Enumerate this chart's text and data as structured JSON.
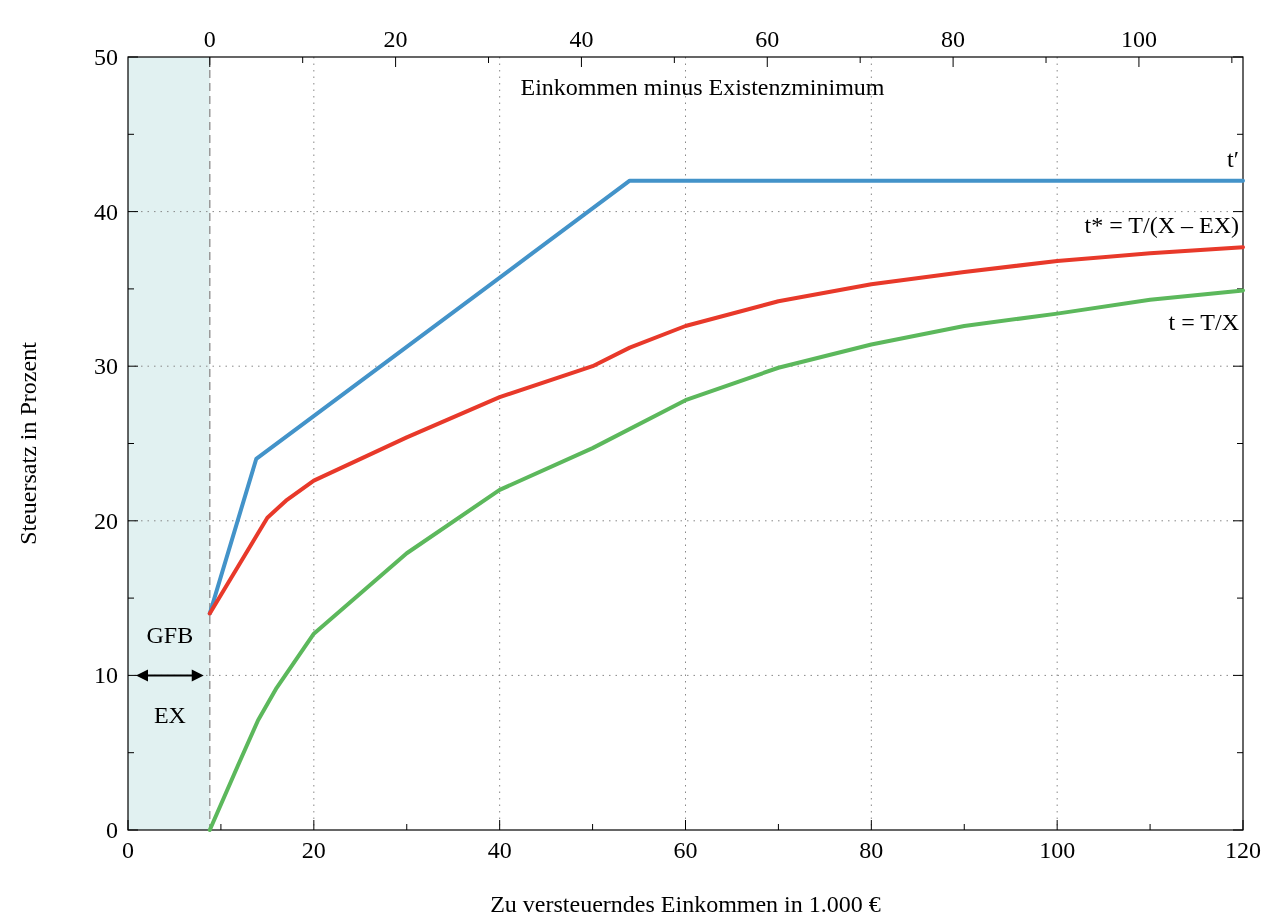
{
  "chart_data": {
    "type": "line",
    "xlabel": "Zu versteuerndes Einkommen in 1.000 €",
    "ylabel": "Steuersatz in Prozent",
    "x2label": "Einkommen minus Existenzminimum",
    "xlim": [
      0,
      120
    ],
    "xticks": [
      0,
      {
        "value": 10,
        "label": null
      },
      20,
      {
        "value": 30,
        "label": null
      },
      40,
      {
        "value": 50,
        "label": null
      },
      60,
      {
        "value": 70,
        "label": null
      },
      80,
      {
        "value": 90,
        "label": null
      },
      100,
      {
        "value": 110,
        "label": null
      },
      120
    ],
    "x2lim": [
      -8.8,
      111.2
    ],
    "x2ticks": [
      0,
      {
        "value": 10,
        "label": null
      },
      20,
      {
        "value": 30,
        "label": null
      },
      40,
      {
        "value": 50,
        "label": null
      },
      60,
      {
        "value": 70,
        "label": null
      },
      80,
      {
        "value": 90,
        "label": null
      },
      100,
      {
        "value": 110,
        "label": null
      }
    ],
    "ylim": [
      0,
      50
    ],
    "yticks": [
      0,
      {
        "value": 5,
        "label": null
      },
      10,
      {
        "value": 15,
        "label": null
      },
      20,
      {
        "value": 25,
        "label": null
      },
      30,
      {
        "value": 35,
        "label": null
      },
      40,
      {
        "value": 45,
        "label": null
      },
      50
    ],
    "grid": true,
    "line_style": "solid",
    "marker": "none",
    "series": [
      {
        "name": "t′",
        "color": "#4393c9",
        "x": [
          8.8,
          13.8,
          54,
          120
        ],
        "values": [
          14,
          24,
          42,
          42
        ]
      },
      {
        "name": "t* = T/(X – EX)",
        "color": "#e8392a",
        "x": [
          8.8,
          13.8,
          15,
          17,
          20,
          30,
          40,
          50,
          54,
          60,
          70,
          80,
          90,
          100,
          110,
          120
        ],
        "values": [
          14,
          19,
          20.2,
          21.3,
          22.6,
          25.4,
          28,
          30,
          31.2,
          32.6,
          34.2,
          35.3,
          36.1,
          36.8,
          37.3,
          37.7
        ]
      },
      {
        "name": "t = T/X",
        "color": "#5cb85c",
        "x": [
          8.8,
          12,
          14,
          16,
          20,
          30,
          40,
          50,
          60,
          70,
          80,
          90,
          100,
          110,
          120
        ],
        "values": [
          0,
          4.4,
          7.1,
          9.2,
          12.7,
          17.9,
          22,
          24.7,
          27.8,
          29.9,
          31.4,
          32.6,
          33.4,
          34.3,
          34.9
        ]
      }
    ],
    "bands": [
      {
        "axis": "x",
        "from": 0,
        "to": 8.8,
        "color": "#e1f1f1"
      }
    ],
    "ref_lines": [
      {
        "axis": "x",
        "value": 8.8,
        "color": "#999999",
        "line_style": "dashed"
      }
    ],
    "annotations": [
      "GFB",
      "EX"
    ]
  }
}
